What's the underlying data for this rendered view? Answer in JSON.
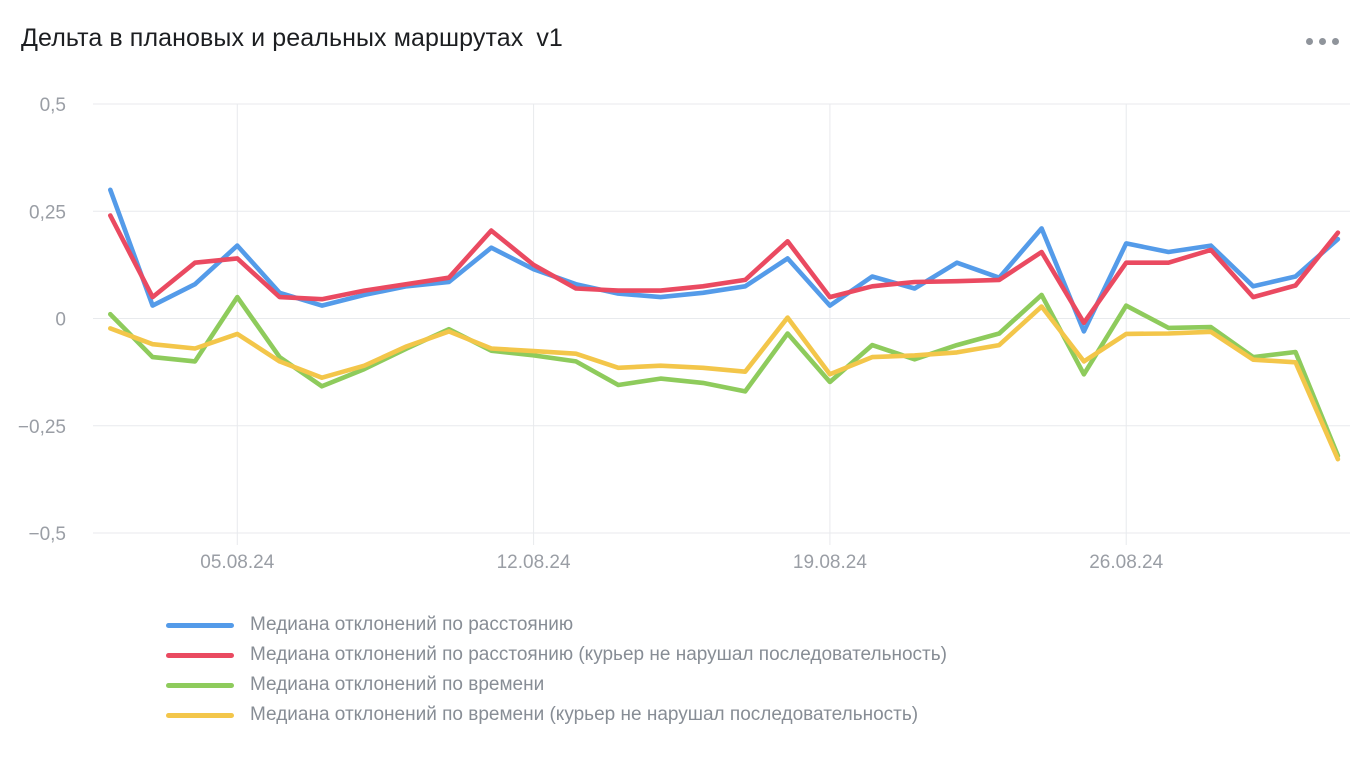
{
  "header": {
    "title": "Дельта в плановых и реальных маршрутах",
    "version": "v1",
    "menu_icon": "ellipsis"
  },
  "colors": {
    "background": "#ffffff",
    "grid": "#e8eaed",
    "axis_text": "#9a9ea5",
    "legend_text": "#878d95",
    "title_text": "#1c1e21",
    "menu_dots": "#8f949b"
  },
  "chart_data": {
    "type": "line",
    "title": "Дельта в плановых и реальных маршрутах v1",
    "x": [
      "02.08.24",
      "03.08.24",
      "04.08.24",
      "05.08.24",
      "06.08.24",
      "07.08.24",
      "08.08.24",
      "09.08.24",
      "10.08.24",
      "11.08.24",
      "12.08.24",
      "13.08.24",
      "14.08.24",
      "15.08.24",
      "16.08.24",
      "17.08.24",
      "18.08.24",
      "19.08.24",
      "20.08.24",
      "21.08.24",
      "22.08.24",
      "23.08.24",
      "24.08.24",
      "25.08.24",
      "26.08.24",
      "27.08.24",
      "28.08.24",
      "29.08.24",
      "30.08.24",
      "31.08.24"
    ],
    "x_ticks": [
      {
        "label": "05.08.24",
        "index": 3
      },
      {
        "label": "12.08.24",
        "index": 10
      },
      {
        "label": "19.08.24",
        "index": 17
      },
      {
        "label": "26.08.24",
        "index": 24
      }
    ],
    "y_ticks": [
      {
        "label": "0,5",
        "value": 0.5
      },
      {
        "label": "0,25",
        "value": 0.25
      },
      {
        "label": "0",
        "value": 0
      },
      {
        "label": "−0,25",
        "value": -0.25
      },
      {
        "label": "−0,5",
        "value": -0.5
      }
    ],
    "ylim": [
      -0.5,
      0.5
    ],
    "grid": true,
    "legend_position": "bottom-left",
    "series": [
      {
        "name": "Медиана отклонений по расстоянию",
        "color": "#549be9",
        "values": [
          0.3,
          0.03,
          0.08,
          0.17,
          0.06,
          0.03,
          0.055,
          0.075,
          0.085,
          0.165,
          0.115,
          0.08,
          0.058,
          0.05,
          0.06,
          0.075,
          0.14,
          0.03,
          0.098,
          0.07,
          0.13,
          0.095,
          0.21,
          -0.03,
          0.175,
          0.155,
          0.17,
          0.075,
          0.098,
          0.185
        ]
      },
      {
        "name": "Медиана отклонений по расстоянию (курьер не нарушал последовательность)",
        "color": "#ea4a61",
        "values": [
          0.24,
          0.05,
          0.13,
          0.14,
          0.05,
          0.045,
          0.065,
          0.08,
          0.095,
          0.205,
          0.125,
          0.07,
          0.065,
          0.065,
          0.075,
          0.09,
          0.18,
          0.05,
          0.075,
          0.085,
          0.087,
          0.09,
          0.155,
          -0.01,
          0.13,
          0.13,
          0.16,
          0.05,
          0.077,
          0.2
        ]
      },
      {
        "name": "Медиана отклонений по времени",
        "color": "#8ecb5c",
        "values": [
          0.01,
          -0.09,
          -0.1,
          0.05,
          -0.09,
          -0.158,
          -0.118,
          -0.07,
          -0.025,
          -0.075,
          -0.086,
          -0.1,
          -0.155,
          -0.14,
          -0.15,
          -0.17,
          -0.035,
          -0.148,
          -0.062,
          -0.095,
          -0.062,
          -0.035,
          0.055,
          -0.13,
          0.03,
          -0.022,
          -0.02,
          -0.09,
          -0.078,
          -0.32
        ]
      },
      {
        "name": "Медиана отклонений по времени (курьер не нарушал последовательность)",
        "color": "#f3c64a",
        "values": [
          -0.023,
          -0.06,
          -0.07,
          -0.036,
          -0.1,
          -0.138,
          -0.11,
          -0.065,
          -0.03,
          -0.07,
          -0.076,
          -0.082,
          -0.115,
          -0.11,
          -0.115,
          -0.124,
          0.002,
          -0.13,
          -0.09,
          -0.086,
          -0.079,
          -0.062,
          0.028,
          -0.1,
          -0.036,
          -0.035,
          -0.031,
          -0.096,
          -0.102,
          -0.328
        ]
      }
    ]
  }
}
